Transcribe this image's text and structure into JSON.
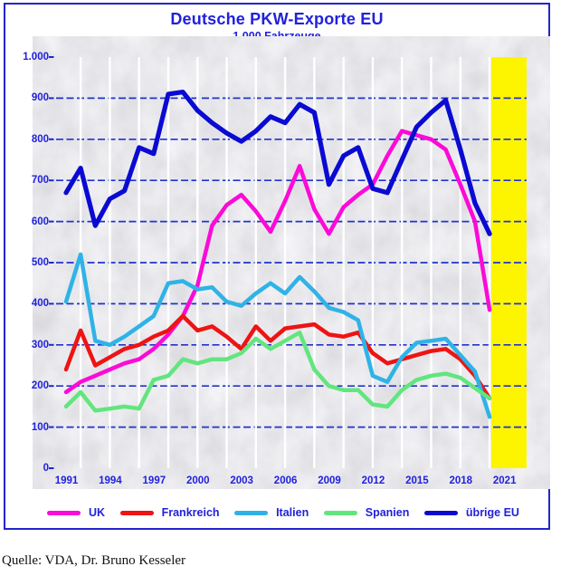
{
  "header": {
    "title": "Deutsche PKW-Exporte EU",
    "subtitle": "1.000 Fahrzeuge"
  },
  "source_note": "Quelle: VDA, Dr. Bruno Kesseler",
  "colors": {
    "text_blue": "#2121dd",
    "frame_blue": "#2424cc",
    "hgrid_blue": "#2233cc",
    "vgrid_white": "#ffffff",
    "highlight_yellow": "#fdf500",
    "plot_background_grey": "#e3e3e7"
  },
  "chart_data": {
    "type": "line",
    "title": "Deutsche PKW-Exporte EU",
    "subtitle": "1.000 Fahrzeuge",
    "unit": "1.000 Fahrzeuge",
    "x": [
      1991,
      1992,
      1993,
      1994,
      1995,
      1996,
      1997,
      1998,
      1999,
      2000,
      2001,
      2002,
      2003,
      2004,
      2005,
      2006,
      2007,
      2008,
      2009,
      2010,
      2011,
      2012,
      2013,
      2014,
      2015,
      2016,
      2017,
      2018,
      2019,
      2020
    ],
    "x_tick_labels": [
      "1991",
      "1994",
      "1997",
      "2000",
      "2003",
      "2006",
      "2009",
      "2012",
      "2015",
      "2018",
      "2021"
    ],
    "x_tick_years": [
      1991,
      1994,
      1997,
      2000,
      2003,
      2006,
      2009,
      2012,
      2015,
      2018,
      2021
    ],
    "y_ticks": [
      0,
      100,
      200,
      300,
      400,
      500,
      600,
      700,
      800,
      900,
      1000
    ],
    "y_tick_labels": [
      "0",
      "100",
      "200",
      "300",
      "400",
      "500",
      "600",
      "700",
      "800",
      "900",
      "1.000"
    ],
    "ylim": [
      0,
      1000
    ],
    "grid": {
      "horizontal": "dashed blue every 100",
      "vertical": "white every 2 years"
    },
    "legend_position": "bottom",
    "highlight_band": {
      "years": [
        "2020",
        "2021"
      ],
      "color": "#fdf500"
    },
    "series": [
      {
        "name": "UK",
        "color": "#fb0ad8",
        "values": [
          185,
          210,
          225,
          240,
          255,
          265,
          290,
          325,
          370,
          445,
          590,
          640,
          665,
          625,
          575,
          650,
          735,
          630,
          570,
          635,
          665,
          690,
          760,
          820,
          810,
          800,
          775,
          690,
          600,
          385
        ]
      },
      {
        "name": "Frankreich",
        "color": "#ee1414",
        "values": [
          240,
          335,
          250,
          270,
          290,
          300,
          320,
          335,
          370,
          335,
          345,
          320,
          290,
          345,
          310,
          340,
          345,
          350,
          325,
          320,
          330,
          280,
          255,
          265,
          275,
          285,
          290,
          265,
          225,
          170
        ]
      },
      {
        "name": "Italien",
        "color": "#2fb3e6",
        "values": [
          405,
          520,
          310,
          300,
          320,
          345,
          370,
          450,
          455,
          435,
          440,
          405,
          395,
          425,
          450,
          425,
          465,
          430,
          390,
          380,
          360,
          225,
          210,
          270,
          305,
          310,
          315,
          275,
          235,
          125
        ]
      },
      {
        "name": "Spanien",
        "color": "#63e57e",
        "values": [
          150,
          185,
          140,
          145,
          150,
          145,
          215,
          225,
          265,
          255,
          265,
          265,
          280,
          315,
          290,
          310,
          330,
          240,
          200,
          190,
          190,
          155,
          150,
          190,
          215,
          225,
          230,
          220,
          195,
          170
        ]
      },
      {
        "name": "übrige EU",
        "color": "#0a0ad2",
        "values": [
          670,
          730,
          590,
          655,
          675,
          780,
          765,
          910,
          915,
          870,
          840,
          815,
          795,
          820,
          855,
          840,
          885,
          865,
          690,
          760,
          780,
          680,
          670,
          750,
          830,
          865,
          895,
          775,
          645,
          570
        ]
      }
    ]
  }
}
